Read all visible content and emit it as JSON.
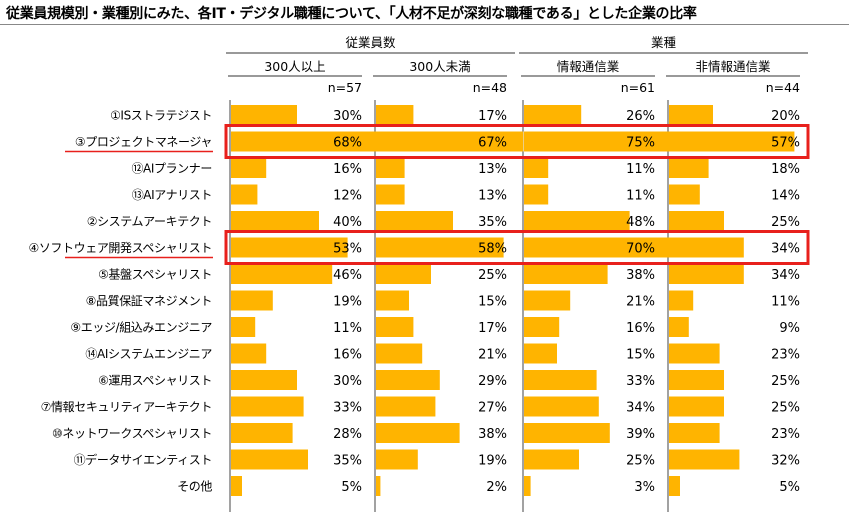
{
  "title": "従業員規模別・業種別にみた、各IT・デジタル職種について、「人材不足が深刻な職種である」とした企業の比率",
  "chart_data": {
    "type": "bar",
    "group_headers": [
      {
        "label": "従業員数",
        "columns": [
          0,
          1
        ]
      },
      {
        "label": "業種",
        "columns": [
          2,
          3
        ]
      }
    ],
    "columns": [
      {
        "name": "300人以上",
        "n": "n=57"
      },
      {
        "name": "300人未満",
        "n": "n=48"
      },
      {
        "name": "情報通信業",
        "n": "n=61"
      },
      {
        "name": "非情報通信業",
        "n": "n=44"
      }
    ],
    "categories": [
      "①ISストラテジスト",
      "③プロジェクトマネージャ",
      "⑫AIプランナー",
      "⑬AIアナリスト",
      "②システムアーキテクト",
      "④ソフトウェア開発スペシャリスト",
      "⑤基盤スペシャリスト",
      "⑧品質保証マネジメント",
      "⑨エッジ/組込みエンジニア",
      "⑭AIシステムエンジニア",
      "⑥運用スペシャリスト",
      "⑦情報セキュリティアーキテクト",
      "⑩ネットワークスペシャリスト",
      "⑪データサイエンティスト",
      "その他"
    ],
    "series": [
      {
        "name": "300人以上",
        "values": [
          30,
          68,
          16,
          12,
          40,
          53,
          46,
          19,
          11,
          16,
          30,
          33,
          28,
          35,
          5
        ]
      },
      {
        "name": "300人未満",
        "values": [
          17,
          67,
          13,
          13,
          35,
          58,
          25,
          15,
          17,
          21,
          29,
          27,
          38,
          19,
          2
        ]
      },
      {
        "name": "情報通信業",
        "values": [
          26,
          75,
          11,
          11,
          48,
          70,
          38,
          21,
          16,
          15,
          33,
          34,
          39,
          25,
          3
        ]
      },
      {
        "name": "非情報通信業",
        "values": [
          20,
          57,
          18,
          14,
          25,
          34,
          34,
          11,
          9,
          23,
          25,
          25,
          23,
          32,
          5
        ]
      }
    ],
    "value_suffix": "%",
    "highlighted_categories": [
      "③プロジェクトマネージャ",
      "④ソフトウェア開発スペシャリスト"
    ],
    "colors": {
      "bar": "#FFB400",
      "highlight": "#E8201C",
      "axis": "#444444"
    },
    "grid": false
  }
}
